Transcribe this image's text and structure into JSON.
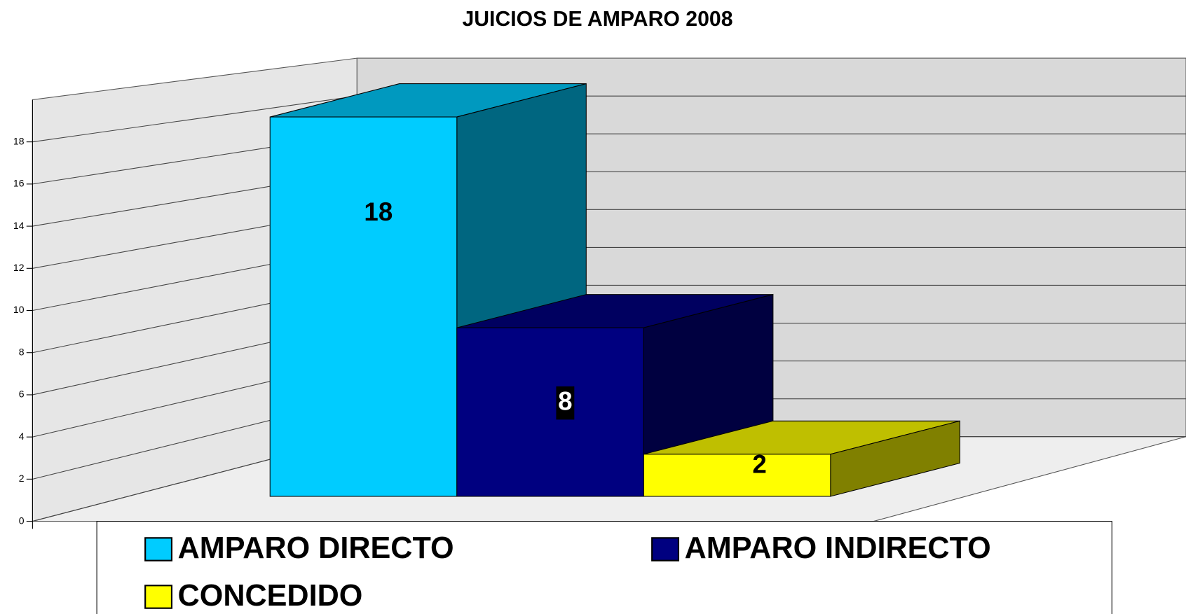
{
  "chart_data": {
    "type": "bar3d",
    "title": "JUICIOS DE AMPARO 2008",
    "series": [
      {
        "name": "AMPARO DIRECTO",
        "color": "#00ccff",
        "values": [
          18
        ]
      },
      {
        "name": "AMPARO INDIRECTO",
        "color": "#000080",
        "values": [
          8
        ]
      },
      {
        "name": "CONCEDIDO",
        "color": "#ffff00",
        "values": [
          2
        ]
      }
    ],
    "ylim": [
      0,
      20
    ],
    "yticks": [
      0,
      2,
      4,
      6,
      8,
      10,
      12,
      14,
      16,
      18
    ],
    "grid": true,
    "legend": "bottom"
  }
}
